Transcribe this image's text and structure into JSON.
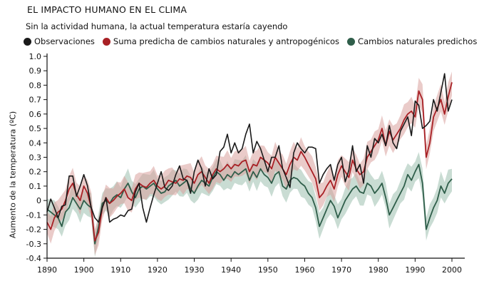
{
  "chart_data": {
    "type": "line",
    "title": "EL IMPACTO HUMANO EN EL CLIMA",
    "subtitle": "Sin la actividad humana, la actual temperatura estaría cayendo",
    "ylabel": "Aumento de la temperatura (ºC)",
    "xlabel": "",
    "xlim": [
      1890,
      2002
    ],
    "ylim": [
      -0.4,
      1.0
    ],
    "x_ticks": [
      1890,
      1900,
      1910,
      1920,
      1930,
      1940,
      1950,
      1960,
      1970,
      1980,
      1990,
      2000
    ],
    "y_ticks": [
      -0.4,
      -0.3,
      -0.2,
      -0.1,
      0,
      0.1,
      0.2,
      0.3,
      0.4,
      0.5,
      0.6,
      0.7,
      0.8,
      0.9,
      1.0
    ],
    "y_tick_labels": [
      "-0.4",
      "-0.3",
      "-0.2",
      "-0.1",
      "0",
      "0.1",
      "0.2",
      "0.3",
      "0.4",
      "0.5",
      "0.6",
      "0.7",
      "0.8",
      "0.9",
      "1.0"
    ],
    "grid": false,
    "legend_position": "top",
    "series": [
      {
        "name": "Observaciones",
        "color": "#1a1a1a",
        "x": [
          1890,
          1891,
          1892,
          1893,
          1894,
          1895,
          1896,
          1897,
          1898,
          1899,
          1900,
          1901,
          1902,
          1903,
          1904,
          1905,
          1906,
          1907,
          1908,
          1909,
          1910,
          1911,
          1912,
          1913,
          1914,
          1915,
          1916,
          1917,
          1918,
          1919,
          1920,
          1921,
          1922,
          1923,
          1924,
          1925,
          1926,
          1927,
          1928,
          1929,
          1930,
          1931,
          1932,
          1933,
          1934,
          1935,
          1936,
          1937,
          1938,
          1939,
          1940,
          1941,
          1942,
          1943,
          1944,
          1945,
          1946,
          1947,
          1948,
          1949,
          1950,
          1951,
          1952,
          1953,
          1954,
          1955,
          1956,
          1957,
          1958,
          1959,
          1960,
          1961,
          1962,
          1963,
          1964,
          1965,
          1966,
          1967,
          1968,
          1969,
          1970,
          1971,
          1972,
          1973,
          1974,
          1975,
          1976,
          1977,
          1978,
          1979,
          1980,
          1981,
          1982,
          1983,
          1984,
          1985,
          1986,
          1987,
          1988,
          1989,
          1990,
          1991,
          1992,
          1993,
          1994,
          1995,
          1996,
          1997,
          1998,
          1999,
          2000
        ],
        "values": [
          -0.08,
          0.01,
          -0.05,
          -0.12,
          -0.04,
          -0.03,
          0.17,
          0.17,
          0.03,
          0.1,
          0.18,
          0.1,
          -0.05,
          -0.12,
          -0.15,
          -0.05,
          0.02,
          -0.15,
          -0.13,
          -0.12,
          -0.1,
          -0.11,
          -0.07,
          -0.06,
          0.06,
          0.12,
          -0.05,
          -0.15,
          -0.05,
          0.04,
          0.12,
          0.2,
          0.09,
          0.07,
          0.1,
          0.18,
          0.24,
          0.15,
          0.14,
          0.05,
          0.2,
          0.28,
          0.22,
          0.1,
          0.22,
          0.15,
          0.18,
          0.34,
          0.37,
          0.46,
          0.33,
          0.4,
          0.33,
          0.36,
          0.46,
          0.53,
          0.33,
          0.41,
          0.36,
          0.28,
          0.2,
          0.3,
          0.3,
          0.38,
          0.22,
          0.16,
          0.09,
          0.33,
          0.4,
          0.36,
          0.33,
          0.37,
          0.37,
          0.36,
          0.12,
          0.18,
          0.22,
          0.25,
          0.14,
          0.25,
          0.3,
          0.13,
          0.21,
          0.38,
          0.2,
          0.25,
          0.12,
          0.38,
          0.3,
          0.43,
          0.4,
          0.46,
          0.38,
          0.52,
          0.4,
          0.36,
          0.48,
          0.53,
          0.58,
          0.45,
          0.69,
          0.66,
          0.5,
          0.52,
          0.55,
          0.7,
          0.62,
          0.75,
          0.88,
          0.62,
          0.7
        ]
      },
      {
        "name": "Suma predicha de cambios naturales y antropogénicos",
        "color": "#a82025",
        "band_color": "#d8a09c",
        "x": [
          1890,
          1891,
          1892,
          1893,
          1894,
          1895,
          1896,
          1897,
          1898,
          1899,
          1900,
          1901,
          1902,
          1903,
          1904,
          1905,
          1906,
          1907,
          1908,
          1909,
          1910,
          1911,
          1912,
          1913,
          1914,
          1915,
          1916,
          1917,
          1918,
          1919,
          1920,
          1921,
          1922,
          1923,
          1924,
          1925,
          1926,
          1927,
          1928,
          1929,
          1930,
          1931,
          1932,
          1933,
          1934,
          1935,
          1936,
          1937,
          1938,
          1939,
          1940,
          1941,
          1942,
          1943,
          1944,
          1945,
          1946,
          1947,
          1948,
          1949,
          1950,
          1951,
          1952,
          1953,
          1954,
          1955,
          1956,
          1957,
          1958,
          1959,
          1960,
          1961,
          1962,
          1963,
          1964,
          1965,
          1966,
          1967,
          1968,
          1969,
          1970,
          1971,
          1972,
          1973,
          1974,
          1975,
          1976,
          1977,
          1978,
          1979,
          1980,
          1981,
          1982,
          1983,
          1984,
          1985,
          1986,
          1987,
          1988,
          1989,
          1990,
          1991,
          1992,
          1993,
          1994,
          1995,
          1996,
          1997,
          1998,
          1999,
          2000
        ],
        "values": [
          -0.15,
          -0.2,
          -0.12,
          -0.08,
          -0.06,
          0.0,
          0.08,
          0.12,
          0.04,
          0.0,
          0.1,
          0.05,
          -0.05,
          -0.28,
          -0.22,
          -0.05,
          0.02,
          -0.02,
          0.0,
          0.03,
          0.05,
          0.08,
          0.02,
          0.0,
          0.08,
          0.12,
          0.1,
          0.09,
          0.12,
          0.14,
          0.1,
          0.08,
          0.1,
          0.14,
          0.13,
          0.12,
          0.15,
          0.14,
          0.17,
          0.16,
          0.12,
          0.18,
          0.2,
          0.16,
          0.12,
          0.18,
          0.22,
          0.2,
          0.22,
          0.25,
          0.22,
          0.25,
          0.24,
          0.27,
          0.28,
          0.2,
          0.25,
          0.24,
          0.3,
          0.28,
          0.26,
          0.22,
          0.3,
          0.26,
          0.22,
          0.18,
          0.25,
          0.3,
          0.28,
          0.34,
          0.3,
          0.25,
          0.2,
          0.15,
          0.02,
          0.05,
          0.1,
          0.14,
          0.08,
          0.18,
          0.24,
          0.2,
          0.16,
          0.28,
          0.22,
          0.18,
          0.2,
          0.3,
          0.34,
          0.38,
          0.42,
          0.5,
          0.38,
          0.48,
          0.42,
          0.46,
          0.5,
          0.56,
          0.6,
          0.62,
          0.58,
          0.76,
          0.7,
          0.3,
          0.4,
          0.58,
          0.64,
          0.7,
          0.6,
          0.72,
          0.82
        ]
      },
      {
        "name": "Cambios naturales predichos",
        "color": "#2f5e4a",
        "band_color": "#9cbfae",
        "x": [
          1890,
          1891,
          1892,
          1893,
          1894,
          1895,
          1896,
          1897,
          1898,
          1899,
          1900,
          1901,
          1902,
          1903,
          1904,
          1905,
          1906,
          1907,
          1908,
          1909,
          1910,
          1911,
          1912,
          1913,
          1914,
          1915,
          1916,
          1917,
          1918,
          1919,
          1920,
          1921,
          1922,
          1923,
          1924,
          1925,
          1926,
          1927,
          1928,
          1929,
          1930,
          1931,
          1932,
          1933,
          1934,
          1935,
          1936,
          1937,
          1938,
          1939,
          1940,
          1941,
          1942,
          1943,
          1944,
          1945,
          1946,
          1947,
          1948,
          1949,
          1950,
          1951,
          1952,
          1953,
          1954,
          1955,
          1956,
          1957,
          1958,
          1959,
          1960,
          1961,
          1962,
          1963,
          1964,
          1965,
          1966,
          1967,
          1968,
          1969,
          1970,
          1971,
          1972,
          1973,
          1974,
          1975,
          1976,
          1977,
          1978,
          1979,
          1980,
          1981,
          1982,
          1983,
          1984,
          1985,
          1986,
          1987,
          1988,
          1989,
          1990,
          1991,
          1992,
          1993,
          1994,
          1995,
          1996,
          1997,
          1998,
          1999,
          2000
        ],
        "values": [
          -0.06,
          -0.08,
          -0.1,
          -0.12,
          -0.18,
          -0.08,
          -0.05,
          0.02,
          -0.02,
          -0.06,
          0.0,
          -0.03,
          -0.05,
          -0.3,
          -0.18,
          -0.02,
          0.0,
          -0.02,
          0.02,
          0.04,
          0.02,
          0.08,
          0.12,
          0.06,
          0.02,
          0.08,
          0.1,
          0.08,
          0.1,
          0.12,
          0.08,
          0.05,
          0.06,
          0.1,
          0.12,
          0.14,
          0.1,
          0.12,
          0.14,
          0.08,
          0.05,
          0.1,
          0.14,
          0.12,
          0.1,
          0.16,
          0.2,
          0.18,
          0.14,
          0.18,
          0.16,
          0.2,
          0.18,
          0.2,
          0.22,
          0.14,
          0.2,
          0.16,
          0.22,
          0.18,
          0.16,
          0.12,
          0.18,
          0.2,
          0.1,
          0.08,
          0.14,
          0.16,
          0.15,
          0.12,
          0.1,
          0.05,
          0.02,
          -0.05,
          -0.18,
          -0.12,
          -0.06,
          0.0,
          -0.04,
          -0.12,
          -0.06,
          0.0,
          0.04,
          0.08,
          0.1,
          0.06,
          0.05,
          0.12,
          0.1,
          0.05,
          0.08,
          0.12,
          0.02,
          -0.1,
          -0.05,
          0.0,
          0.05,
          0.1,
          0.18,
          0.14,
          0.2,
          0.25,
          0.12,
          -0.2,
          -0.12,
          -0.05,
          0.0,
          0.1,
          0.05,
          0.12,
          0.15
        ]
      }
    ]
  }
}
